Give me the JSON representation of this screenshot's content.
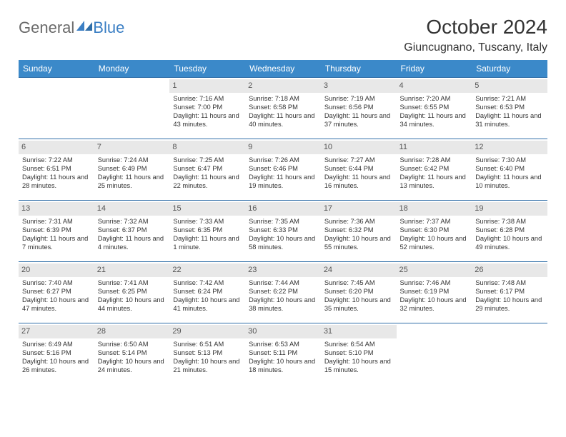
{
  "brand": {
    "part1": "General",
    "part2": "Blue"
  },
  "title": "October 2024",
  "location": "Giuncugnano, Tuscany, Italy",
  "colors": {
    "header_bg": "#3b89c9",
    "header_text": "#ffffff",
    "daynum_bg": "#e8e8e8",
    "row_border": "#2f6ea8",
    "brand_blue": "#3b7fc4",
    "brand_gray": "#6a6a6a"
  },
  "weekdays": [
    "Sunday",
    "Monday",
    "Tuesday",
    "Wednesday",
    "Thursday",
    "Friday",
    "Saturday"
  ],
  "weeks": [
    [
      null,
      null,
      {
        "n": "1",
        "sr": "Sunrise: 7:16 AM",
        "ss": "Sunset: 7:00 PM",
        "dl": "Daylight: 11 hours and 43 minutes."
      },
      {
        "n": "2",
        "sr": "Sunrise: 7:18 AM",
        "ss": "Sunset: 6:58 PM",
        "dl": "Daylight: 11 hours and 40 minutes."
      },
      {
        "n": "3",
        "sr": "Sunrise: 7:19 AM",
        "ss": "Sunset: 6:56 PM",
        "dl": "Daylight: 11 hours and 37 minutes."
      },
      {
        "n": "4",
        "sr": "Sunrise: 7:20 AM",
        "ss": "Sunset: 6:55 PM",
        "dl": "Daylight: 11 hours and 34 minutes."
      },
      {
        "n": "5",
        "sr": "Sunrise: 7:21 AM",
        "ss": "Sunset: 6:53 PM",
        "dl": "Daylight: 11 hours and 31 minutes."
      }
    ],
    [
      {
        "n": "6",
        "sr": "Sunrise: 7:22 AM",
        "ss": "Sunset: 6:51 PM",
        "dl": "Daylight: 11 hours and 28 minutes."
      },
      {
        "n": "7",
        "sr": "Sunrise: 7:24 AM",
        "ss": "Sunset: 6:49 PM",
        "dl": "Daylight: 11 hours and 25 minutes."
      },
      {
        "n": "8",
        "sr": "Sunrise: 7:25 AM",
        "ss": "Sunset: 6:47 PM",
        "dl": "Daylight: 11 hours and 22 minutes."
      },
      {
        "n": "9",
        "sr": "Sunrise: 7:26 AM",
        "ss": "Sunset: 6:46 PM",
        "dl": "Daylight: 11 hours and 19 minutes."
      },
      {
        "n": "10",
        "sr": "Sunrise: 7:27 AM",
        "ss": "Sunset: 6:44 PM",
        "dl": "Daylight: 11 hours and 16 minutes."
      },
      {
        "n": "11",
        "sr": "Sunrise: 7:28 AM",
        "ss": "Sunset: 6:42 PM",
        "dl": "Daylight: 11 hours and 13 minutes."
      },
      {
        "n": "12",
        "sr": "Sunrise: 7:30 AM",
        "ss": "Sunset: 6:40 PM",
        "dl": "Daylight: 11 hours and 10 minutes."
      }
    ],
    [
      {
        "n": "13",
        "sr": "Sunrise: 7:31 AM",
        "ss": "Sunset: 6:39 PM",
        "dl": "Daylight: 11 hours and 7 minutes."
      },
      {
        "n": "14",
        "sr": "Sunrise: 7:32 AM",
        "ss": "Sunset: 6:37 PM",
        "dl": "Daylight: 11 hours and 4 minutes."
      },
      {
        "n": "15",
        "sr": "Sunrise: 7:33 AM",
        "ss": "Sunset: 6:35 PM",
        "dl": "Daylight: 11 hours and 1 minute."
      },
      {
        "n": "16",
        "sr": "Sunrise: 7:35 AM",
        "ss": "Sunset: 6:33 PM",
        "dl": "Daylight: 10 hours and 58 minutes."
      },
      {
        "n": "17",
        "sr": "Sunrise: 7:36 AM",
        "ss": "Sunset: 6:32 PM",
        "dl": "Daylight: 10 hours and 55 minutes."
      },
      {
        "n": "18",
        "sr": "Sunrise: 7:37 AM",
        "ss": "Sunset: 6:30 PM",
        "dl": "Daylight: 10 hours and 52 minutes."
      },
      {
        "n": "19",
        "sr": "Sunrise: 7:38 AM",
        "ss": "Sunset: 6:28 PM",
        "dl": "Daylight: 10 hours and 49 minutes."
      }
    ],
    [
      {
        "n": "20",
        "sr": "Sunrise: 7:40 AM",
        "ss": "Sunset: 6:27 PM",
        "dl": "Daylight: 10 hours and 47 minutes."
      },
      {
        "n": "21",
        "sr": "Sunrise: 7:41 AM",
        "ss": "Sunset: 6:25 PM",
        "dl": "Daylight: 10 hours and 44 minutes."
      },
      {
        "n": "22",
        "sr": "Sunrise: 7:42 AM",
        "ss": "Sunset: 6:24 PM",
        "dl": "Daylight: 10 hours and 41 minutes."
      },
      {
        "n": "23",
        "sr": "Sunrise: 7:44 AM",
        "ss": "Sunset: 6:22 PM",
        "dl": "Daylight: 10 hours and 38 minutes."
      },
      {
        "n": "24",
        "sr": "Sunrise: 7:45 AM",
        "ss": "Sunset: 6:20 PM",
        "dl": "Daylight: 10 hours and 35 minutes."
      },
      {
        "n": "25",
        "sr": "Sunrise: 7:46 AM",
        "ss": "Sunset: 6:19 PM",
        "dl": "Daylight: 10 hours and 32 minutes."
      },
      {
        "n": "26",
        "sr": "Sunrise: 7:48 AM",
        "ss": "Sunset: 6:17 PM",
        "dl": "Daylight: 10 hours and 29 minutes."
      }
    ],
    [
      {
        "n": "27",
        "sr": "Sunrise: 6:49 AM",
        "ss": "Sunset: 5:16 PM",
        "dl": "Daylight: 10 hours and 26 minutes."
      },
      {
        "n": "28",
        "sr": "Sunrise: 6:50 AM",
        "ss": "Sunset: 5:14 PM",
        "dl": "Daylight: 10 hours and 24 minutes."
      },
      {
        "n": "29",
        "sr": "Sunrise: 6:51 AM",
        "ss": "Sunset: 5:13 PM",
        "dl": "Daylight: 10 hours and 21 minutes."
      },
      {
        "n": "30",
        "sr": "Sunrise: 6:53 AM",
        "ss": "Sunset: 5:11 PM",
        "dl": "Daylight: 10 hours and 18 minutes."
      },
      {
        "n": "31",
        "sr": "Sunrise: 6:54 AM",
        "ss": "Sunset: 5:10 PM",
        "dl": "Daylight: 10 hours and 15 minutes."
      },
      null,
      null
    ]
  ]
}
